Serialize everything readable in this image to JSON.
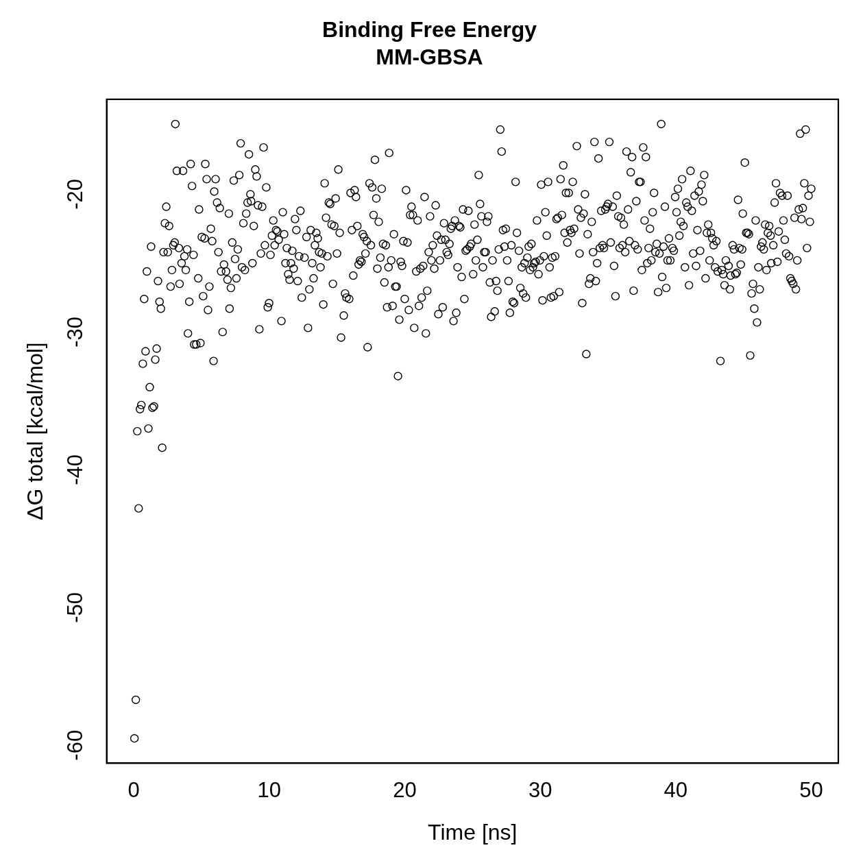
{
  "chart_data": {
    "type": "scatter",
    "title": "Binding Free Energy",
    "subtitle": "MM-GBSA",
    "xlabel": "Time [ns]",
    "ylabel": "ΔG total [kcal/mol]",
    "xlim": [
      -2,
      52
    ],
    "ylim": [
      -61.3,
      -13.1
    ],
    "xticks": [
      0,
      10,
      20,
      30,
      40,
      50
    ],
    "yticks": [
      -60,
      -50,
      -40,
      -30,
      -20
    ],
    "grid": false,
    "legend": false,
    "marker": "circle",
    "series": [
      {
        "color": "#000000",
        "x": [
          0.05,
          0.15,
          0.36,
          0.26,
          0.46,
          0.56,
          0.67,
          0.87,
          0.77,
          0.97,
          1.08,
          1.18,
          1.28,
          1.38,
          1.49,
          1.59,
          1.69,
          1.79,
          1.9,
          2.0,
          2.1,
          2.2,
          2.3,
          2.4,
          2.51,
          2.61,
          2.72,
          2.82,
          2.92,
          3.07,
          3.02,
          3.18,
          3.33,
          3.38,
          3.53,
          3.64,
          3.74,
          3.84,
          3.94,
          4.0,
          4.1,
          4.2,
          4.3,
          4.41,
          4.46,
          4.61,
          4.76,
          4.82,
          4.92,
          5.02,
          5.12,
          5.23,
          5.28,
          5.38,
          5.48,
          5.58,
          5.69,
          5.79,
          5.89,
          5.94,
          6.04,
          6.15,
          6.25,
          6.35,
          6.45,
          6.56,
          6.66,
          6.81,
          6.92,
          7.02,
          7.07,
          7.17,
          7.27,
          7.38,
          7.48,
          7.58,
          7.68,
          7.79,
          7.89,
          7.99,
          8.09,
          8.2,
          8.3,
          8.4,
          8.5,
          8.61,
          8.66,
          8.76,
          8.86,
          8.97,
          9.07,
          9.17,
          9.27,
          9.38,
          9.48,
          9.58,
          9.68,
          9.78,
          9.89,
          9.99,
          10.09,
          10.2,
          10.3,
          10.4,
          10.5,
          10.6,
          10.7,
          10.9,
          11.0,
          11.1,
          11.2,
          11.3,
          11.4,
          11.5,
          11.6,
          11.7,
          11.8,
          11.9,
          12.0,
          12.1,
          12.2,
          12.3,
          12.4,
          12.6,
          12.75,
          12.86,
          12.96,
          13.06,
          13.17,
          13.27,
          13.37,
          13.47,
          13.58,
          13.68,
          13.78,
          13.88,
          13.99,
          14.09,
          14.19,
          14.29,
          14.4,
          14.5,
          14.6,
          14.7,
          14.8,
          14.9,
          15.0,
          15.1,
          15.2,
          15.3,
          15.5,
          15.6,
          15.7,
          15.9,
          16.0,
          16.1,
          16.2,
          16.3,
          16.4,
          16.5,
          16.6,
          16.7,
          16.8,
          16.9,
          17.0,
          17.1,
          17.2,
          17.26,
          17.4,
          17.5,
          17.6,
          17.7,
          17.8,
          17.9,
          17.98,
          18.08,
          18.2,
          18.3,
          18.4,
          18.5,
          18.6,
          18.7,
          18.8,
          18.85,
          19.0,
          19.1,
          19.2,
          19.3,
          19.4,
          19.5,
          19.6,
          19.7,
          19.8,
          19.9,
          20.0,
          20.1,
          20.2,
          20.3,
          20.4,
          20.5,
          20.6,
          20.7,
          20.85,
          20.95,
          21.05,
          21.15,
          21.25,
          21.36,
          21.46,
          21.56,
          21.66,
          21.77,
          21.87,
          21.97,
          22.07,
          22.18,
          22.28,
          22.38,
          22.48,
          22.6,
          22.7,
          22.8,
          22.9,
          23.0,
          23.1,
          23.2,
          23.3,
          23.4,
          23.5,
          23.6,
          23.7,
          23.8,
          23.9,
          24.0,
          24.1,
          24.2,
          24.3,
          24.4,
          24.5,
          24.6,
          24.7,
          24.8,
          24.9,
          25.05,
          25.15,
          25.25,
          25.36,
          25.46,
          25.56,
          25.66,
          25.77,
          25.87,
          25.97,
          26.07,
          26.17,
          26.28,
          26.38,
          26.48,
          26.64,
          26.74,
          26.84,
          26.94,
          27.05,
          27.15,
          27.25,
          27.36,
          27.46,
          27.56,
          27.66,
          27.76,
          27.87,
          27.97,
          28.07,
          28.18,
          28.28,
          28.43,
          28.53,
          28.64,
          28.74,
          28.84,
          28.94,
          29.05,
          29.15,
          29.25,
          29.35,
          29.46,
          29.56,
          29.66,
          29.76,
          29.87,
          29.97,
          30.07,
          30.17,
          30.27,
          30.38,
          30.48,
          30.58,
          30.69,
          30.79,
          30.89,
          30.99,
          31.1,
          31.2,
          31.3,
          31.4,
          31.5,
          31.6,
          31.7,
          31.8,
          31.9,
          32.0,
          32.1,
          32.2,
          32.3,
          32.4,
          32.5,
          32.7,
          32.8,
          32.9,
          33.0,
          33.1,
          33.2,
          33.3,
          33.4,
          33.5,
          33.6,
          33.7,
          33.8,
          33.9,
          34.0,
          34.1,
          34.2,
          34.3,
          34.4,
          34.5,
          34.6,
          34.7,
          34.8,
          34.9,
          35.0,
          35.1,
          35.2,
          35.35,
          35.45,
          35.55,
          35.65,
          35.76,
          35.86,
          35.96,
          36.07,
          36.17,
          36.27,
          36.37,
          36.48,
          36.58,
          36.68,
          36.78,
          36.89,
          36.99,
          37.09,
          37.19,
          37.3,
          37.4,
          37.5,
          37.6,
          37.7,
          37.8,
          37.9,
          38.0,
          38.1,
          38.2,
          38.3,
          38.4,
          38.5,
          38.6,
          38.7,
          38.8,
          38.93,
          39.0,
          39.1,
          39.2,
          39.3,
          39.4,
          39.5,
          39.6,
          39.75,
          39.86,
          39.96,
          40.06,
          40.16,
          40.27,
          40.37,
          40.47,
          40.57,
          40.68,
          40.78,
          40.88,
          40.98,
          41.09,
          41.19,
          41.29,
          41.39,
          41.5,
          41.6,
          41.7,
          41.8,
          41.9,
          42.0,
          42.1,
          42.2,
          42.3,
          42.4,
          42.5,
          42.6,
          42.7,
          42.8,
          42.9,
          43.0,
          43.1,
          43.3,
          43.4,
          43.5,
          43.6,
          43.7,
          43.9,
          44.0,
          44.05,
          44.2,
          44.3,
          44.4,
          44.5,
          44.6,
          44.7,
          44.8,
          44.9,
          44.95,
          45.1,
          45.2,
          45.3,
          45.4,
          45.5,
          45.6,
          45.7,
          45.8,
          45.9,
          46.0,
          46.1,
          46.2,
          46.3,
          46.4,
          46.5,
          46.6,
          46.7,
          46.8,
          46.9,
          47.0,
          47.05,
          47.2,
          47.3,
          47.4,
          47.5,
          47.6,
          47.7,
          47.85,
          47.95,
          48.05,
          48.15,
          48.25,
          48.36,
          48.46,
          48.56,
          48.67,
          48.77,
          48.87,
          48.97,
          49.08,
          49.18,
          49.28,
          49.38,
          49.49,
          49.59,
          49.69,
          49.8,
          49.9,
          50.0
        ],
        "values": [
          -59.5,
          -56.7,
          -42.8,
          -37.2,
          -35.6,
          -35.3,
          -32.3,
          -31.4,
          -27.6,
          -25.6,
          -37.0,
          -34.0,
          -23.8,
          -35.5,
          -35.4,
          -32.0,
          -31.2,
          -26.3,
          -27.8,
          -28.3,
          -38.4,
          -24.2,
          -22.1,
          -20.9,
          -24.2,
          -22.3,
          -26.7,
          -25.5,
          -23.7,
          -14.9,
          -23.5,
          -18.3,
          -23.9,
          -26.5,
          -25.0,
          -18.3,
          -24.5,
          -25.5,
          -24.0,
          -30.1,
          -27.8,
          -17.8,
          -19.4,
          -24.4,
          -30.9,
          -30.9,
          -26.1,
          -21.1,
          -30.8,
          -23.1,
          -27.4,
          -23.2,
          -17.8,
          -18.9,
          -28.4,
          -26.7,
          -22.5,
          -23.4,
          -32.1,
          -19.8,
          -18.9,
          -20.6,
          -24.2,
          -21.0,
          -25.6,
          -30.0,
          -25.1,
          -25.6,
          -26.2,
          -21.4,
          -28.3,
          -26.8,
          -23.5,
          -19.0,
          -24.7,
          -26.1,
          -24.0,
          -18.6,
          -16.3,
          -25.3,
          -22.1,
          -25.5,
          -21.4,
          -20.6,
          -17.1,
          -20.0,
          -20.5,
          -25.0,
          -22.3,
          -18.2,
          -18.7,
          -20.8,
          -29.8,
          -24.3,
          -20.9,
          -16.6,
          -23.7,
          -19.5,
          -28.2,
          -27.9,
          -24.4,
          -23.0,
          -21.9,
          -23.7,
          -22.6,
          -22.7,
          -23.3,
          -29.2,
          -21.3,
          -22.9,
          -25.0,
          -23.9,
          -25.8,
          -26.2,
          -25.0,
          -24.1,
          -25.4,
          -21.8,
          -22.6,
          -26.3,
          -24.5,
          -21.2,
          -27.5,
          -24.6,
          -23.1,
          -29.7,
          -26.9,
          -22.6,
          -25.0,
          -26.1,
          -23.7,
          -22.8,
          -23.2,
          -24.2,
          -25.3,
          -24.3,
          -28.0,
          -19.2,
          -21.7,
          -24.5,
          -20.6,
          -20.7,
          -22.2,
          -26.5,
          -22.3,
          -20.3,
          -24.3,
          -18.2,
          -22.8,
          -30.4,
          -28.8,
          -27.2,
          -27.5,
          -27.6,
          -19.9,
          -22.6,
          -25.9,
          -19.7,
          -20.2,
          -22.3,
          -25.1,
          -24.8,
          -24.9,
          -22.9,
          -23.1,
          -24.3,
          -23.4,
          -31.1,
          -19.2,
          -23.7,
          -19.5,
          -21.5,
          -17.5,
          -20.3,
          -25.4,
          -22.0,
          -24.6,
          -19.6,
          -23.6,
          -26.4,
          -23.7,
          -28.2,
          -25.3,
          -17.0,
          -24.8,
          -28.1,
          -22.9,
          -26.7,
          -26.7,
          -33.2,
          -29.1,
          -24.9,
          -25.2,
          -23.4,
          -27.6,
          -19.7,
          -23.5,
          -28.4,
          -21.5,
          -20.9,
          -21.5,
          -29.7,
          -25.6,
          -21.9,
          -28.1,
          -25.4,
          -27.5,
          -25.2,
          -20.2,
          -30.1,
          -27.0,
          -24.2,
          -21.6,
          -24.8,
          -23.7,
          -25.4,
          -20.8,
          -23.0,
          -28.7,
          -24.8,
          -23.3,
          -28.2,
          -22.1,
          -23.3,
          -24.2,
          -24.4,
          -23.6,
          -22.5,
          -22.3,
          -29.2,
          -21.9,
          -28.6,
          -25.3,
          -22.3,
          -22.4,
          -26.0,
          -21.1,
          -27.6,
          -24.1,
          -24.0,
          -21.2,
          -23.8,
          -23.6,
          -25.8,
          -22.2,
          -24.8,
          -23.3,
          -18.6,
          -20.7,
          -21.6,
          -25.3,
          -24.2,
          -24.2,
          -22.0,
          -21.6,
          -26.4,
          -28.9,
          -24.8,
          -28.5,
          -26.3,
          -27.0,
          -24.0,
          -15.3,
          -16.9,
          -22.6,
          -23.8,
          -22.5,
          -24.8,
          -26.3,
          -28.6,
          -23.7,
          -27.8,
          -27.9,
          -19.1,
          -22.8,
          -24.1,
          -26.8,
          -25.3,
          -27.2,
          -25.0,
          -27.5,
          -24.6,
          -23.8,
          -25.5,
          -23.6,
          -25.3,
          -25.0,
          -24.9,
          -21.9,
          -25.8,
          -24.8,
          -19.3,
          -27.7,
          -24.5,
          -21.3,
          -23.0,
          -19.1,
          -25.3,
          -27.5,
          -24.6,
          -27.4,
          -24.5,
          -21.8,
          -21.7,
          -27.1,
          -18.9,
          -21.5,
          -17.9,
          -22.8,
          -19.9,
          -23.5,
          -19.9,
          -22.6,
          -22.8,
          -19.1,
          -22.5,
          -16.5,
          -21.1,
          -24.3,
          -21.7,
          -27.9,
          -21.4,
          -20.0,
          -31.6,
          -22.9,
          -26.5,
          -26.1,
          -22.0,
          -24.2,
          -16.2,
          -26.3,
          -25.0,
          -17.4,
          -23.9,
          -21.2,
          -23.7,
          -23.9,
          -21.1,
          -20.9,
          -20.7,
          -16.2,
          -23.5,
          -20.9,
          -25.2,
          -27.4,
          -20.1,
          -21.6,
          -23.9,
          -21.7,
          -23.7,
          -22.2,
          -24.2,
          -16.9,
          -21.1,
          -23.4,
          -18.4,
          -17.3,
          -27.0,
          -23.7,
          -20.5,
          -24.0,
          -19.1,
          -19.1,
          -25.5,
          -16.6,
          -21.9,
          -17.3,
          -25.0,
          -23.9,
          -22.5,
          -24.8,
          -21.3,
          -19.9,
          -24.2,
          -23.6,
          -27.1,
          -24.3,
          -14.9,
          -26.0,
          -23.8,
          -20.9,
          -26.8,
          -24.8,
          -23.2,
          -24.8,
          -23.9,
          -24.1,
          -20.2,
          -21.3,
          -19.6,
          -23.0,
          -22.0,
          -18.9,
          -22.3,
          -25.3,
          -20.6,
          -20.9,
          -26.6,
          -18.3,
          -21.2,
          -24.3,
          -20.1,
          -25.2,
          -22.6,
          -19.8,
          -24.1,
          -19.3,
          -20.5,
          -18.6,
          -26.1,
          -22.8,
          -22.2,
          -24.8,
          -22.8,
          -23.2,
          -23.7,
          -25.3,
          -23.4,
          -25.6,
          -32.1,
          -25.5,
          -25.8,
          -26.6,
          -24.8,
          -25.2,
          -26.9,
          -25.9,
          -23.7,
          -24.0,
          -25.8,
          -25.7,
          -20.4,
          -23.9,
          -25.1,
          -24.0,
          -21.4,
          -17.7,
          -22.8,
          -22.8,
          -22.9,
          -31.7,
          -27.2,
          -26.5,
          -28.3,
          -21.9,
          -29.3,
          -25.3,
          -26.9,
          -23.8,
          -23.5,
          -24.0,
          -22.2,
          -25.5,
          -22.8,
          -22.3,
          -23.0,
          -25.0,
          -23.7,
          -20.6,
          -19.2,
          -24.9,
          -22.7,
          -19.9,
          -20.1,
          -21.9,
          -23.3,
          -24.3,
          -20.1,
          -24.5,
          -26.1,
          -26.3,
          -26.5,
          -21.7,
          -26.9,
          -24.8,
          -21.1,
          -15.6,
          -21.8,
          -21.0,
          -19.2,
          -15.3,
          -23.9,
          -20.1,
          -22.0,
          -19.6
        ]
      }
    ]
  }
}
